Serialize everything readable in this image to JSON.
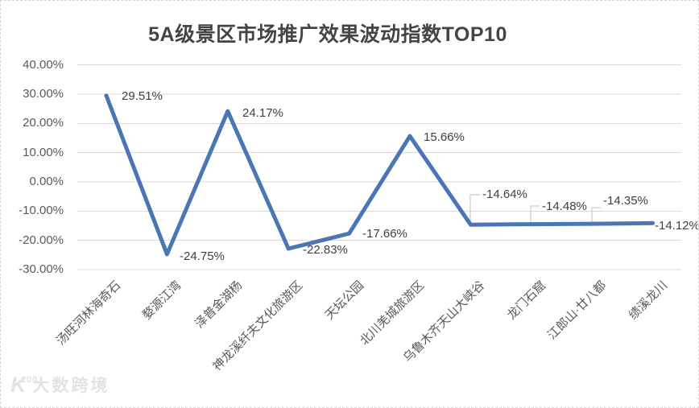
{
  "title": "5A级景区市场推广效果波动指数TOP10",
  "watermark": {
    "logo": "K",
    "logo_sup": "100",
    "text": "大数跨境"
  },
  "chart_data": {
    "type": "line",
    "title": "5A级景区市场推广效果波动指数TOP10",
    "categories": [
      "汤旺河林海奇石",
      "婺源江湾",
      "泽普金湖杨",
      "神龙溪纤夫文化旅游区",
      "天坛公园",
      "北川羌城旅游区",
      "乌鲁木齐天山大峡谷",
      "龙门石窟",
      "江郎山·廿八都",
      "绩溪龙川"
    ],
    "series": [
      {
        "name": "市场推广效果波动指数",
        "values": [
          29.51,
          -24.75,
          24.17,
          -22.83,
          -17.66,
          15.66,
          -14.64,
          -14.48,
          -14.35,
          -14.12
        ],
        "labels": [
          "29.51%",
          "-24.75%",
          "24.17%",
          "-22.83%",
          "-17.66%",
          "15.66%",
          "-14.64%",
          "-14.48%",
          "-14.35%",
          "-14.12%"
        ]
      }
    ],
    "xlabel": "",
    "ylabel": "",
    "ylim": [
      -30,
      40
    ],
    "yticks": {
      "values": [
        40,
        30,
        20,
        10,
        0,
        -10,
        -20,
        -30
      ],
      "labels": [
        "40.00%",
        "30.00%",
        "20.00%",
        "10.00%",
        "0.00%",
        "-10.00%",
        "-20.00%",
        "-30.00%"
      ]
    },
    "grid": "horizontal",
    "legend": "none",
    "colors": {
      "line": "#4a76b5",
      "grid": "#d9d9d9",
      "leader": "#bfbfbf",
      "axis_text": "#595959",
      "data_label_text": "#404040",
      "title_text": "#454545",
      "watermark": "#e3e3e3",
      "background": "#ffffff"
    }
  }
}
